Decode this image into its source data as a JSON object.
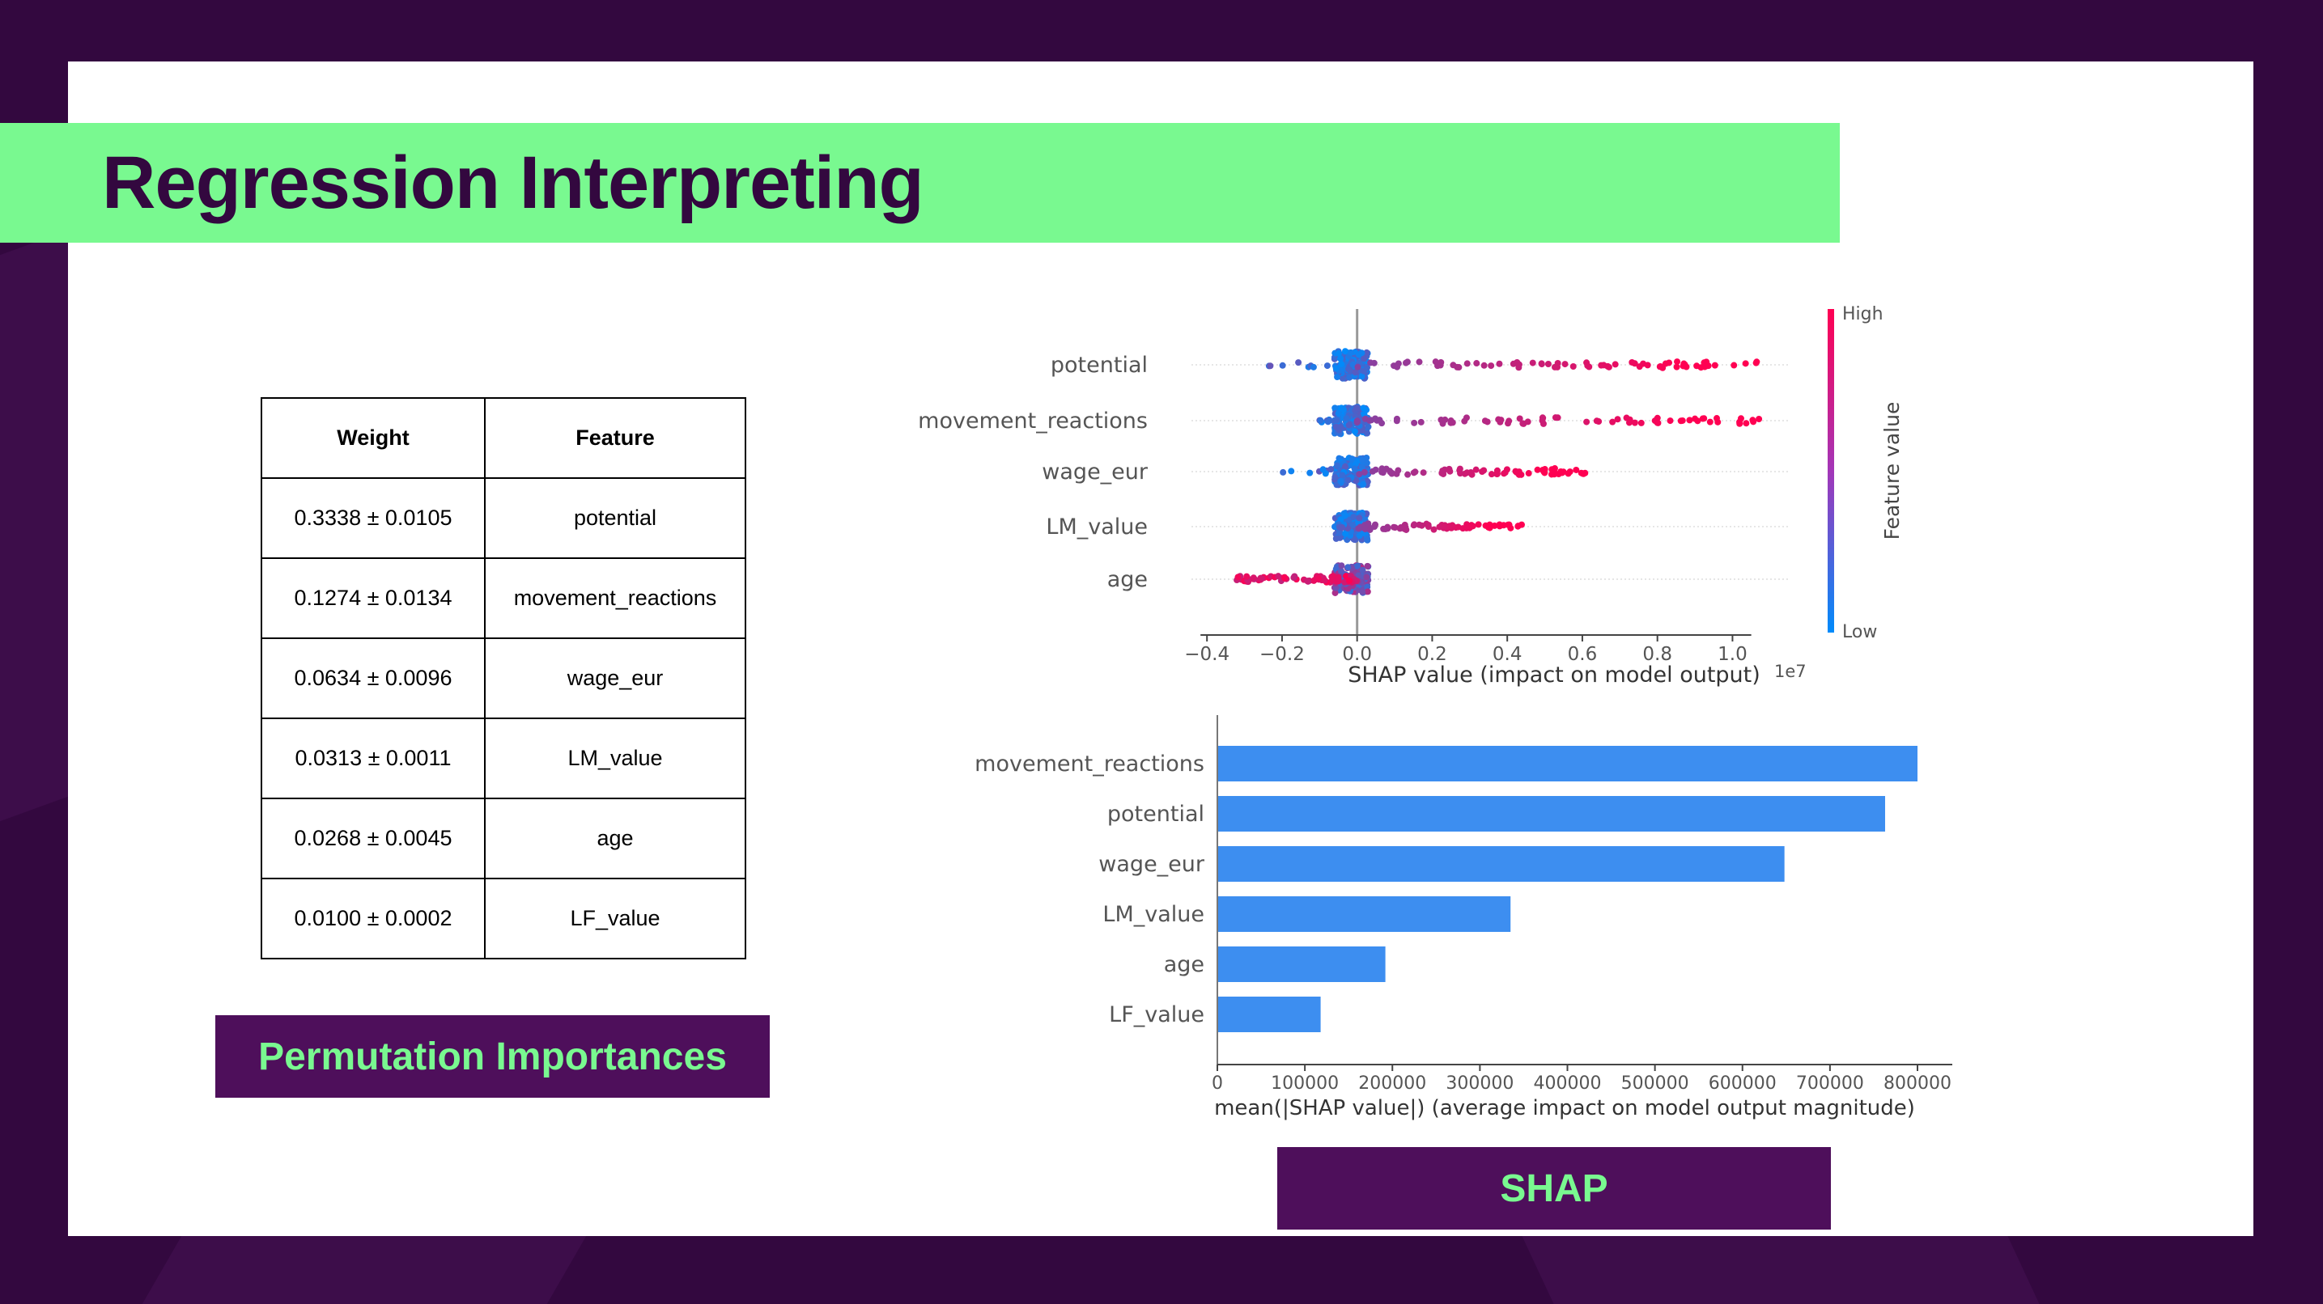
{
  "slide": {
    "title": "Regression Interpreting",
    "colors": {
      "background": "#33083f",
      "accent": "#79f990",
      "label_bg": "#4e0f5b",
      "bar": "#3d8ef0"
    }
  },
  "permutation_table": {
    "headers": [
      "Weight",
      "Feature"
    ],
    "rows": [
      [
        "0.3338 ± 0.0105",
        "potential"
      ],
      [
        "0.1274 ± 0.0134",
        "movement_reactions"
      ],
      [
        "0.0634 ± 0.0096",
        "wage_eur"
      ],
      [
        "0.0313 ± 0.0011",
        "LM_value"
      ],
      [
        "0.0268 ± 0.0045",
        "age"
      ],
      [
        "0.0100 ± 0.0002",
        "LF_value"
      ]
    ],
    "caption": "Permutation Importances"
  },
  "shap_caption": "SHAP",
  "chart_data": [
    {
      "type": "scatter",
      "subtype": "beeswarm",
      "features": [
        "potential",
        "movement_reactions",
        "wage_eur",
        "LM_value",
        "age"
      ],
      "xlabel": "SHAP value (impact on model output)",
      "x_ticks": [
        "−0.4",
        "−0.2",
        "0.0",
        "0.2",
        "0.4",
        "0.6",
        "0.8",
        "1.0"
      ],
      "x_tick_values": [
        -0.4,
        -0.2,
        0.0,
        0.2,
        0.4,
        0.6,
        0.8,
        1.0
      ],
      "xlim": [
        -0.45,
        1.15
      ],
      "scale_label": "1e7",
      "colorbar": {
        "label": "Feature value",
        "high": "High",
        "low": "Low",
        "high_color": "#ff0052",
        "low_color": "#008bfb"
      },
      "spread": [
        {
          "feature": "potential",
          "min": -0.24,
          "max": 1.07
        },
        {
          "feature": "movement_reactions",
          "min": -0.1,
          "max": 1.08
        },
        {
          "feature": "wage_eur",
          "min": -0.27,
          "max": 0.61
        },
        {
          "feature": "LM_value",
          "min": -0.02,
          "max": 0.44
        },
        {
          "feature": "age",
          "min": -0.33,
          "max": 0.11
        }
      ]
    },
    {
      "type": "bar",
      "orientation": "horizontal",
      "categories": [
        "movement_reactions",
        "potential",
        "wage_eur",
        "LM_value",
        "age",
        "LF_value"
      ],
      "values": [
        800000,
        763000,
        648000,
        335000,
        192000,
        118000
      ],
      "xlabel": "mean(|SHAP value|) (average impact on model output magnitude)",
      "x_ticks": [
        "0",
        "100000",
        "200000",
        "300000",
        "400000",
        "500000",
        "600000",
        "700000",
        "800000"
      ],
      "xlim": [
        0,
        840000
      ]
    }
  ]
}
